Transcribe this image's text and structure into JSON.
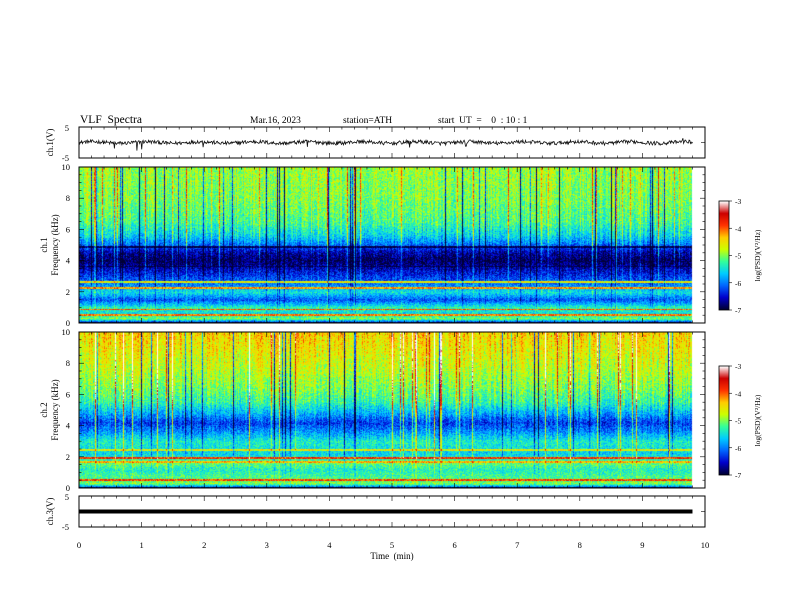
{
  "header": {
    "title": "VLF  Spectra",
    "date": "Mar.16, 2023",
    "station": "station=ATH",
    "start_ut": "start  UT  =    0  : 10 : 1"
  },
  "colors": {
    "background": "#ffffff",
    "axis": "#000000",
    "colormap": [
      "#000033",
      "#0000cc",
      "#0066ff",
      "#00ccff",
      "#33ff99",
      "#ccff00",
      "#ffcc00",
      "#ff3300",
      "#cc0000",
      "#ffffff"
    ]
  },
  "chart_data": [
    {
      "type": "line",
      "panel": "ch1-waveform",
      "ylabel": "ch.1(V)",
      "ylim": [
        -5,
        5
      ],
      "yticks": [
        "5",
        "-5"
      ],
      "x_unit": "min",
      "xlim": [
        0,
        10
      ],
      "data_extent_min": 9.8,
      "mean": 0.0,
      "fluctuation_amplitude": 0.6,
      "spikes": [
        {
          "x": 0.57,
          "y": -1.9
        },
        {
          "x": 0.93,
          "y": -2.6
        },
        {
          "x": 1.0,
          "y": -2.2
        },
        {
          "x": 1.98,
          "y": -1.5
        },
        {
          "x": 3.65,
          "y": -1.4
        },
        {
          "x": 5.28,
          "y": -1.6
        },
        {
          "x": 6.18,
          "y": -1.2
        },
        {
          "x": 9.65,
          "y": 1.4
        }
      ]
    },
    {
      "type": "heatmap",
      "panel": "ch1-spectrogram",
      "ylabel": "ch.1\nFrequency  (kHz)",
      "ylim": [
        0,
        10
      ],
      "yticks": [
        "0",
        "2",
        "4",
        "6",
        "8",
        "10"
      ],
      "xlim": [
        0,
        10
      ],
      "colorbar": {
        "label": "log(PSD)(V²/Hz)",
        "range": [
          -7,
          -3
        ],
        "ticks": [
          "-3",
          "-4",
          "-5",
          "-6",
          "-7"
        ]
      },
      "frequency_profile": [
        {
          "f": 0.0,
          "v": -6.8
        },
        {
          "f": 0.3,
          "v": -5.0
        },
        {
          "f": 0.6,
          "v": -5.6
        },
        {
          "f": 1.0,
          "v": -5.3
        },
        {
          "f": 1.5,
          "v": -6.2
        },
        {
          "f": 2.0,
          "v": -5.5
        },
        {
          "f": 2.5,
          "v": -6.0
        },
        {
          "f": 3.0,
          "v": -6.3
        },
        {
          "f": 3.5,
          "v": -6.6
        },
        {
          "f": 4.0,
          "v": -6.9
        },
        {
          "f": 4.6,
          "v": -6.6
        },
        {
          "f": 5.0,
          "v": -6.1
        },
        {
          "f": 5.6,
          "v": -5.6
        },
        {
          "f": 6.5,
          "v": -5.2
        },
        {
          "f": 8.0,
          "v": -5.0
        },
        {
          "f": 10.0,
          "v": -4.9
        }
      ],
      "bands": [
        {
          "f": 0.05,
          "v": -7.0
        },
        {
          "f": 0.55,
          "v": -4.1
        },
        {
          "f": 0.9,
          "v": -4.0
        },
        {
          "f": 2.25,
          "v": -4.2
        },
        {
          "f": 2.65,
          "v": -4.6
        },
        {
          "f": 4.9,
          "v": -7.0
        },
        {
          "f": 3.65,
          "v": -7.0
        }
      ]
    },
    {
      "type": "heatmap",
      "panel": "ch2-spectrogram",
      "ylabel": "ch.2\nFrequency  (kHz)",
      "ylim": [
        0,
        10
      ],
      "yticks": [
        "0",
        "2",
        "4",
        "6",
        "8",
        "10"
      ],
      "xlim": [
        0,
        10
      ],
      "colorbar": {
        "label": "log(PSD)(V²/Hz)",
        "range": [
          -7,
          -3
        ],
        "ticks": [
          "-3",
          "-4",
          "-5",
          "-6",
          "-7"
        ]
      },
      "frequency_profile": [
        {
          "f": 0.0,
          "v": -6.5
        },
        {
          "f": 0.3,
          "v": -5.0
        },
        {
          "f": 0.7,
          "v": -5.2
        },
        {
          "f": 1.2,
          "v": -5.4
        },
        {
          "f": 1.6,
          "v": -5.1
        },
        {
          "f": 2.2,
          "v": -5.6
        },
        {
          "f": 3.0,
          "v": -5.4
        },
        {
          "f": 3.6,
          "v": -5.9
        },
        {
          "f": 4.2,
          "v": -6.3
        },
        {
          "f": 4.8,
          "v": -5.8
        },
        {
          "f": 5.5,
          "v": -5.3
        },
        {
          "f": 6.5,
          "v": -5.0
        },
        {
          "f": 8.0,
          "v": -4.7
        },
        {
          "f": 10.0,
          "v": -4.4
        }
      ],
      "bands": [
        {
          "f": 0.05,
          "v": -7.0
        },
        {
          "f": 0.55,
          "v": -3.9
        },
        {
          "f": 1.95,
          "v": -3.8
        },
        {
          "f": 1.7,
          "v": -4.3
        },
        {
          "f": 2.45,
          "v": -4.6
        }
      ]
    },
    {
      "type": "line",
      "panel": "ch3-waveform",
      "ylabel": "ch.3(V)",
      "ylim": [
        -5,
        5
      ],
      "yticks": [
        "5",
        "-5"
      ],
      "xlim": [
        0,
        10
      ],
      "data_extent_min": 9.8,
      "mean": 0.0,
      "xlabel": "Time  (min)",
      "xticks": [
        "0",
        "1",
        "2",
        "3",
        "4",
        "5",
        "6",
        "7",
        "8",
        "9",
        "10"
      ]
    }
  ]
}
